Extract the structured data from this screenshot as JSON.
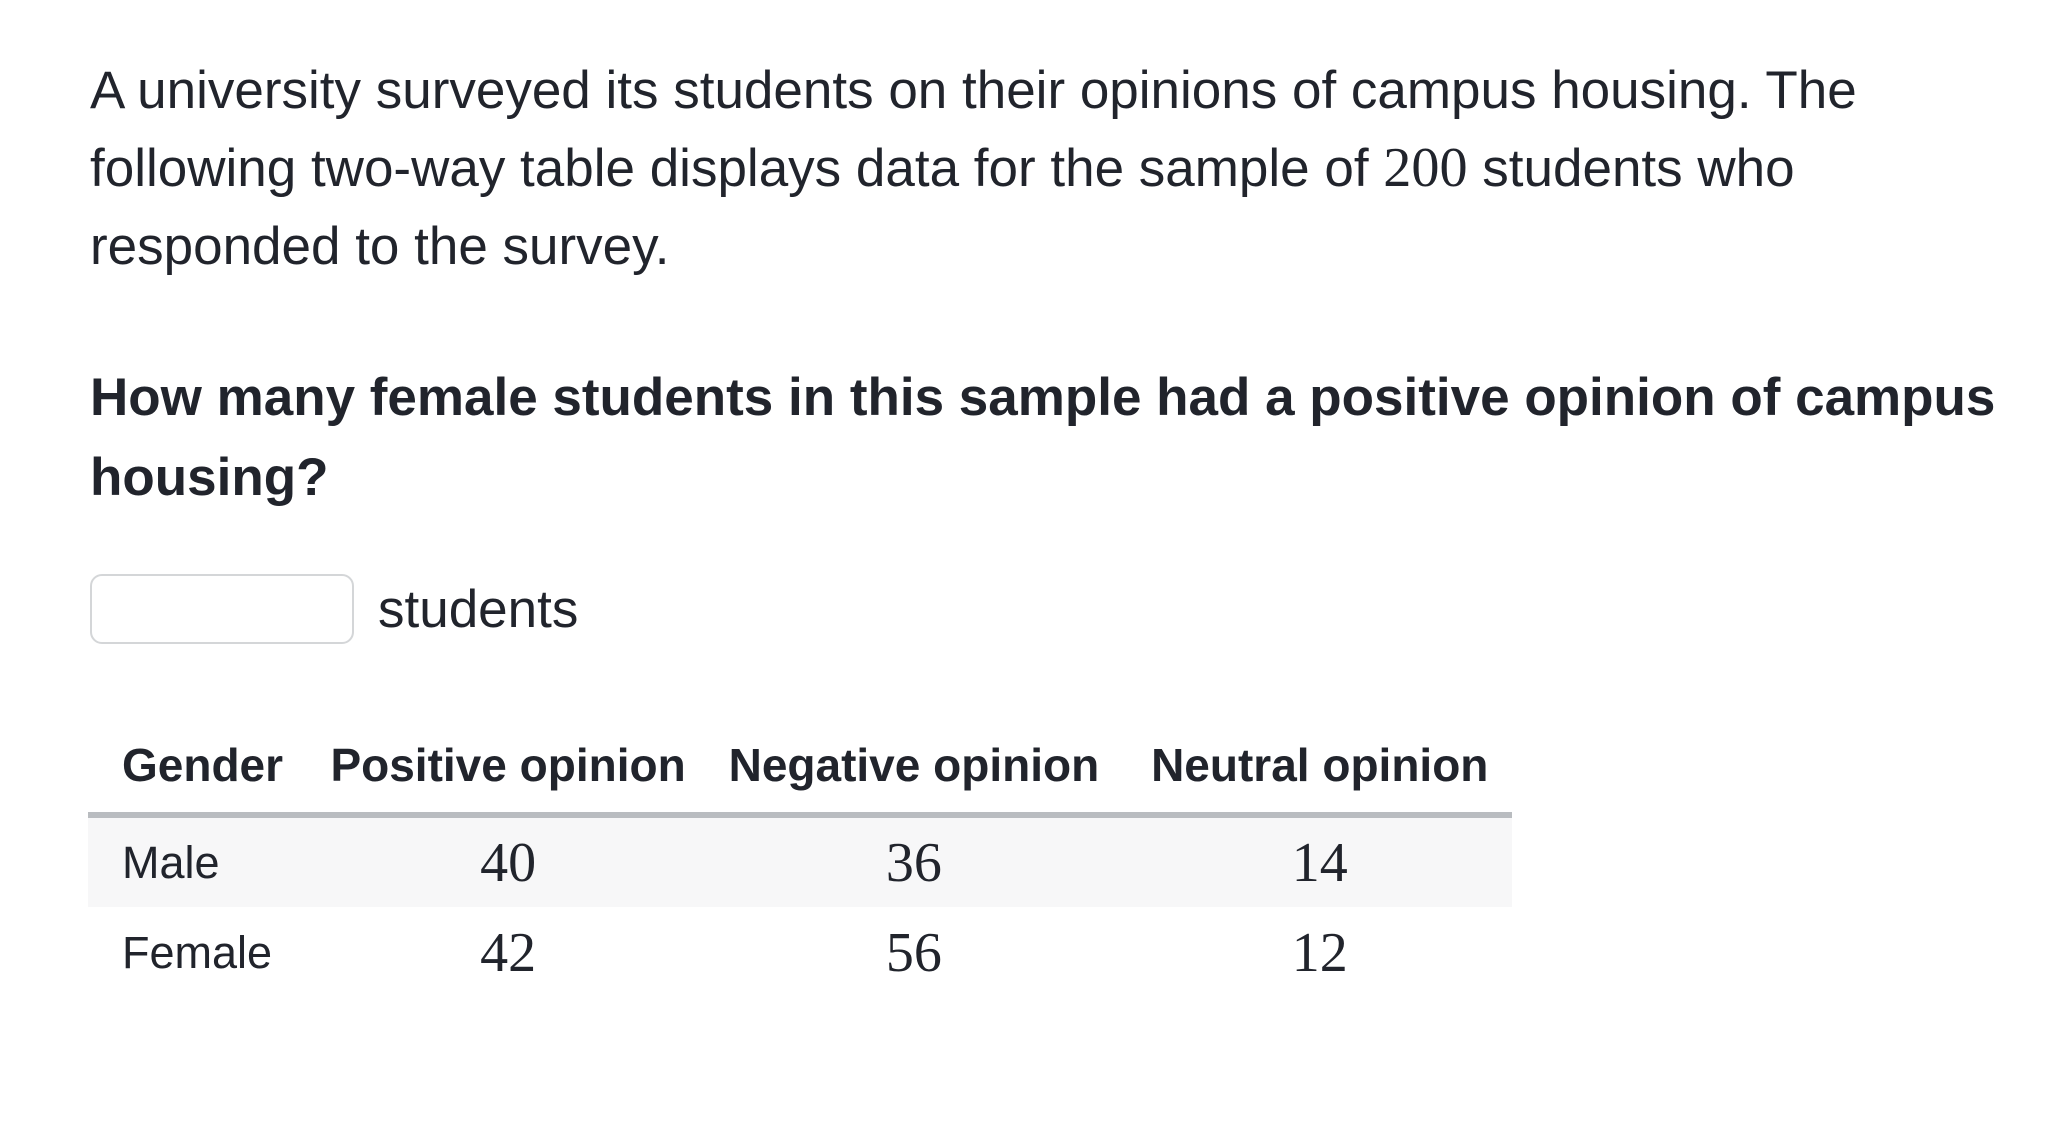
{
  "intro": {
    "part1": "A university surveyed its students on their opinions of campus housing. The following two-way table displays data for the sample of",
    "sample_size": "200",
    "part2": "students who responded to the survey."
  },
  "question": "How many female students in this sample had a positive opinion of campus housing?",
  "answer": {
    "value": "",
    "unit": "students"
  },
  "table": {
    "headers": {
      "gender": "Gender",
      "positive": "Positive opinion",
      "negative": "Negative opinion",
      "neutral": "Neutral opinion"
    },
    "rows": [
      {
        "label": "Male",
        "positive": "40",
        "negative": "36",
        "neutral": "14"
      },
      {
        "label": "Female",
        "positive": "42",
        "negative": "56",
        "neutral": "12"
      }
    ]
  },
  "colors": {
    "text": "#21242c",
    "table_rule": "#b9bcc0",
    "row_highlight": "#f7f7f8",
    "input_border": "#d4d6d8"
  }
}
